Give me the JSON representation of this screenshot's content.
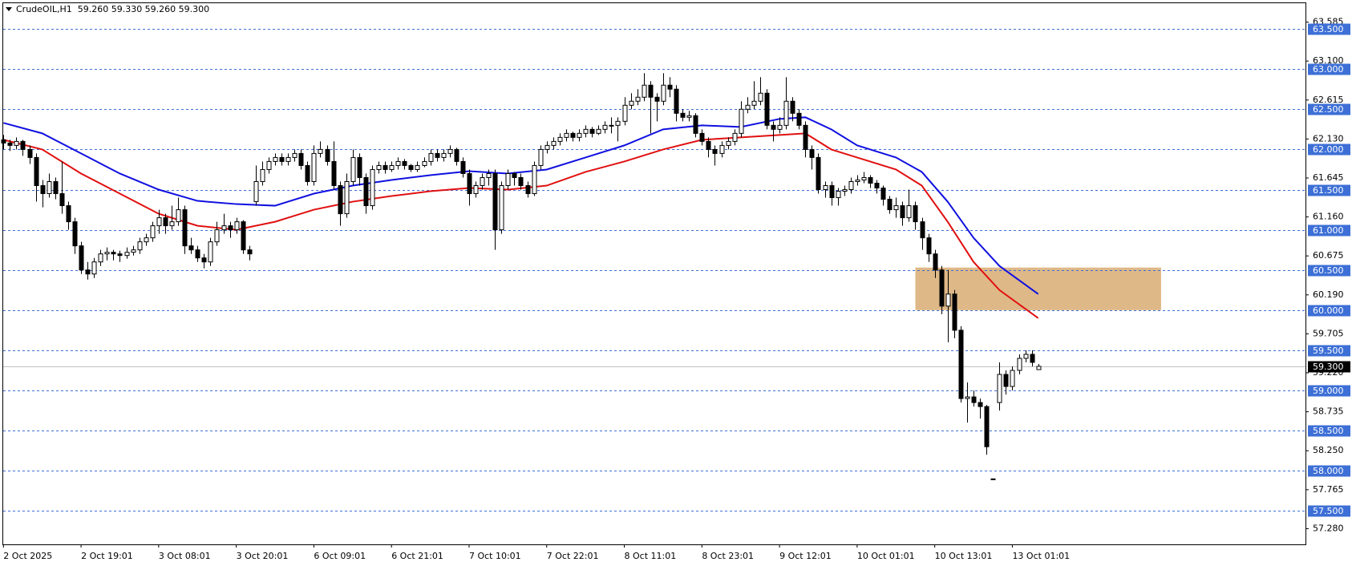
{
  "chart_data": {
    "type": "candlestick",
    "title": "CrudeOIL,H1  59.260 59.330 59.260 59.300",
    "ylim": [
      57.085,
      63.82
    ],
    "yticks": [
      63.585,
      {
        "value": 63.1,
        "label": "63.100"
      },
      62.615,
      {
        "value": 62.13,
        "label": "62.130"
      },
      61.645,
      {
        "value": 61.16,
        "label": "61.160"
      },
      60.675,
      {
        "value": 60.19,
        "label": "60.190"
      },
      59.705,
      {
        "value": 59.22,
        "label": "59.220"
      },
      58.735,
      {
        "value": 58.25,
        "label": "58.250"
      },
      57.765,
      {
        "value": 57.28,
        "label": "57.280"
      }
    ],
    "levels": [
      {
        "value": 63.5,
        "label": "63.500"
      },
      {
        "value": 63,
        "label": "63.000"
      },
      {
        "value": 62.5,
        "label": "62.500"
      },
      {
        "value": 62,
        "label": "62.000"
      },
      {
        "value": 61.5,
        "label": "61.500"
      },
      {
        "value": 61,
        "label": "61.000"
      },
      {
        "value": 60.5,
        "label": "60.500"
      },
      {
        "value": 60,
        "label": "60.000"
      },
      {
        "value": 59.5,
        "label": "59.500"
      },
      {
        "value": 59,
        "label": "59.000"
      },
      {
        "value": 58.5,
        "label": "58.500"
      },
      {
        "value": 58,
        "label": "58.000"
      },
      {
        "value": 57.5,
        "label": "57.500"
      }
    ],
    "level_color": "#3d6fd6",
    "last_price": {
      "value": 59.3,
      "label": "59.300"
    },
    "zone": {
      "from": 141,
      "to": 179,
      "low": 60.0,
      "high": 60.53,
      "color": "#deb887"
    },
    "categories": [
      "2 Oct 2025",
      null,
      null,
      null,
      null,
      null,
      null,
      null,
      null,
      null,
      null,
      null,
      "2 Oct 19:01",
      null,
      null,
      null,
      null,
      null,
      null,
      null,
      null,
      null,
      null,
      null,
      "3 Oct 08:01",
      null,
      null,
      null,
      null,
      null,
      null,
      null,
      null,
      null,
      null,
      null,
      "3 Oct 20:01",
      null,
      null,
      null,
      null,
      null,
      null,
      null,
      null,
      null,
      null,
      null,
      "6 Oct 09:01",
      null,
      null,
      null,
      null,
      null,
      null,
      null,
      null,
      null,
      null,
      null,
      "6 Oct 21:01",
      null,
      null,
      null,
      null,
      null,
      null,
      null,
      null,
      null,
      null,
      null,
      "7 Oct 10:01",
      null,
      null,
      null,
      null,
      null,
      null,
      null,
      null,
      null,
      null,
      null,
      "7 Oct 22:01",
      null,
      null,
      null,
      null,
      null,
      null,
      null,
      null,
      null,
      null,
      null,
      "8 Oct 11:01",
      null,
      null,
      null,
      null,
      null,
      null,
      null,
      null,
      null,
      null,
      null,
      "8 Oct 23:01",
      null,
      null,
      null,
      null,
      null,
      null,
      null,
      null,
      null,
      null,
      null,
      "9 Oct 12:01",
      null,
      null,
      null,
      null,
      null,
      null,
      null,
      null,
      null,
      null,
      null,
      "10 Oct 01:01",
      null,
      null,
      null,
      null,
      null,
      null,
      null,
      null,
      null,
      null,
      null,
      "10 Oct 13:01",
      null,
      null,
      null,
      null,
      null,
      null,
      null,
      null,
      null,
      null,
      null,
      "13 Oct 01:01",
      null,
      null,
      null,
      null
    ],
    "candles": [
      [
        62.12,
        62.18,
        62.0,
        62.08
      ],
      [
        62.08,
        62.12,
        61.98,
        62.05
      ],
      [
        62.05,
        62.15,
        62.0,
        62.1
      ],
      [
        62.1,
        62.12,
        61.92,
        62.0
      ],
      [
        62.0,
        62.05,
        61.82,
        61.9
      ],
      [
        61.9,
        61.95,
        61.35,
        61.55
      ],
      [
        61.55,
        61.62,
        61.28,
        61.45
      ],
      [
        61.45,
        61.7,
        61.4,
        61.6
      ],
      [
        61.6,
        61.65,
        61.38,
        61.45
      ],
      [
        61.45,
        61.85,
        61.2,
        61.3
      ],
      [
        61.3,
        61.35,
        61.0,
        61.1
      ],
      [
        61.1,
        61.15,
        60.7,
        60.8
      ],
      [
        60.8,
        60.85,
        60.45,
        60.5
      ],
      [
        60.5,
        60.6,
        60.38,
        60.45
      ],
      [
        60.45,
        60.65,
        60.4,
        60.6
      ],
      [
        60.6,
        60.75,
        60.55,
        60.7
      ],
      [
        60.7,
        60.78,
        60.62,
        60.72
      ],
      [
        60.72,
        60.75,
        60.62,
        60.7
      ],
      [
        60.7,
        60.74,
        60.6,
        60.68
      ],
      [
        60.68,
        60.78,
        60.64,
        60.72
      ],
      [
        60.72,
        60.8,
        60.68,
        60.75
      ],
      [
        60.75,
        60.9,
        60.7,
        60.85
      ],
      [
        60.85,
        60.95,
        60.8,
        60.9
      ],
      [
        60.9,
        61.1,
        60.85,
        61.05
      ],
      [
        61.05,
        61.25,
        60.95,
        61.15
      ],
      [
        61.15,
        61.2,
        60.95,
        61.05
      ],
      [
        61.05,
        61.3,
        61.0,
        61.1
      ],
      [
        61.1,
        61.4,
        61.05,
        61.25
      ],
      [
        61.25,
        61.3,
        60.7,
        60.8
      ],
      [
        60.8,
        60.9,
        60.7,
        60.75
      ],
      [
        60.75,
        60.8,
        60.6,
        60.65
      ],
      [
        60.65,
        60.7,
        60.52,
        60.6
      ],
      [
        60.6,
        60.9,
        60.55,
        60.85
      ],
      [
        60.85,
        61.1,
        60.8,
        61.0
      ],
      [
        61.0,
        61.2,
        60.95,
        61.05
      ],
      [
        61.05,
        61.1,
        60.9,
        61.0
      ],
      [
        61.0,
        61.15,
        60.95,
        61.1
      ],
      [
        61.1,
        61.12,
        60.7,
        60.75
      ],
      [
        60.75,
        60.8,
        60.62,
        60.7
      ],
      [
        61.35,
        61.8,
        61.3,
        61.6
      ],
      [
        61.6,
        61.85,
        61.55,
        61.75
      ],
      [
        61.75,
        61.9,
        61.7,
        61.85
      ],
      [
        61.85,
        61.95,
        61.8,
        61.9
      ],
      [
        61.9,
        61.95,
        61.8,
        61.85
      ],
      [
        61.85,
        61.95,
        61.8,
        61.9
      ],
      [
        61.9,
        62.0,
        61.85,
        61.95
      ],
      [
        61.95,
        62.0,
        61.75,
        61.8
      ],
      [
        61.8,
        61.85,
        61.55,
        61.6
      ],
      [
        61.6,
        62.05,
        61.55,
        61.95
      ],
      [
        61.95,
        62.1,
        61.9,
        62.0
      ],
      [
        62.0,
        62.05,
        61.8,
        61.85
      ],
      [
        61.85,
        62.1,
        61.5,
        61.55
      ],
      [
        61.55,
        61.6,
        61.05,
        61.2
      ],
      [
        61.2,
        61.7,
        61.15,
        61.6
      ],
      [
        61.6,
        62.0,
        61.55,
        61.9
      ],
      [
        61.9,
        61.95,
        61.55,
        61.65
      ],
      [
        61.65,
        61.7,
        61.2,
        61.3
      ],
      [
        61.3,
        61.8,
        61.25,
        61.75
      ],
      [
        61.75,
        61.85,
        61.7,
        61.8
      ],
      [
        61.8,
        61.85,
        61.7,
        61.75
      ],
      [
        61.75,
        61.85,
        61.72,
        61.8
      ],
      [
        61.8,
        61.9,
        61.75,
        61.85
      ],
      [
        61.85,
        61.88,
        61.75,
        61.8
      ],
      [
        61.8,
        61.82,
        61.72,
        61.75
      ],
      [
        61.75,
        61.85,
        61.72,
        61.8
      ],
      [
        61.8,
        61.9,
        61.78,
        61.85
      ],
      [
        61.85,
        62.0,
        61.8,
        61.95
      ],
      [
        61.95,
        62.0,
        61.85,
        61.9
      ],
      [
        61.9,
        62.0,
        61.85,
        61.95
      ],
      [
        61.95,
        62.05,
        61.9,
        62.0
      ],
      [
        62.0,
        62.02,
        61.8,
        61.85
      ],
      [
        61.85,
        61.9,
        61.65,
        61.7
      ],
      [
        61.7,
        61.75,
        61.3,
        61.45
      ],
      [
        61.45,
        61.6,
        61.4,
        61.55
      ],
      [
        61.55,
        61.7,
        61.5,
        61.65
      ],
      [
        61.65,
        61.75,
        61.55,
        61.7
      ],
      [
        61.7,
        61.75,
        60.75,
        61.0
      ],
      [
        61.0,
        61.6,
        60.95,
        61.55
      ],
      [
        61.55,
        61.75,
        61.5,
        61.7
      ],
      [
        61.7,
        61.72,
        61.55,
        61.65
      ],
      [
        61.65,
        61.7,
        61.5,
        61.55
      ],
      [
        61.55,
        61.6,
        61.4,
        61.45
      ],
      [
        61.45,
        61.85,
        61.42,
        61.8
      ],
      [
        61.8,
        62.05,
        61.75,
        62.0
      ],
      [
        62.0,
        62.1,
        61.95,
        62.05
      ],
      [
        62.05,
        62.15,
        62.0,
        62.1
      ],
      [
        62.1,
        62.2,
        62.05,
        62.15
      ],
      [
        62.15,
        62.25,
        62.1,
        62.2
      ],
      [
        62.2,
        62.22,
        62.1,
        62.15
      ],
      [
        62.15,
        62.25,
        62.1,
        62.2
      ],
      [
        62.2,
        62.3,
        62.15,
        62.25
      ],
      [
        62.25,
        62.28,
        62.15,
        62.2
      ],
      [
        62.2,
        62.3,
        62.18,
        62.25
      ],
      [
        62.25,
        62.35,
        62.2,
        62.3
      ],
      [
        62.3,
        62.4,
        62.2,
        62.3
      ],
      [
        62.3,
        62.4,
        62.1,
        62.35
      ],
      [
        62.35,
        62.65,
        62.3,
        62.55
      ],
      [
        62.55,
        62.7,
        62.5,
        62.6
      ],
      [
        62.6,
        62.75,
        62.55,
        62.65
      ],
      [
        62.65,
        62.95,
        62.6,
        62.8
      ],
      [
        62.8,
        62.85,
        62.2,
        62.65
      ],
      [
        62.65,
        62.7,
        62.35,
        62.6
      ],
      [
        62.6,
        62.95,
        62.55,
        62.8
      ],
      [
        62.8,
        62.9,
        62.65,
        62.75
      ],
      [
        62.75,
        62.8,
        62.35,
        62.45
      ],
      [
        62.45,
        62.5,
        62.35,
        62.4
      ],
      [
        62.4,
        62.48,
        62.35,
        62.42
      ],
      [
        62.42,
        62.45,
        62.15,
        62.2
      ],
      [
        62.2,
        62.25,
        62.05,
        62.1
      ],
      [
        62.1,
        62.15,
        61.9,
        62.0
      ],
      [
        62.0,
        62.05,
        61.8,
        61.95
      ],
      [
        61.95,
        62.1,
        61.9,
        62.05
      ],
      [
        62.05,
        62.15,
        62.0,
        62.1
      ],
      [
        62.1,
        62.25,
        62.05,
        62.2
      ],
      [
        62.2,
        62.6,
        62.15,
        62.5
      ],
      [
        62.5,
        62.65,
        62.45,
        62.55
      ],
      [
        62.55,
        62.85,
        62.5,
        62.6
      ],
      [
        62.6,
        62.9,
        62.55,
        62.7
      ],
      [
        62.7,
        62.75,
        62.25,
        62.3
      ],
      [
        62.3,
        62.35,
        62.1,
        62.25
      ],
      [
        62.25,
        62.4,
        62.2,
        62.3
      ],
      [
        62.3,
        62.9,
        62.25,
        62.6
      ],
      [
        62.6,
        62.65,
        62.35,
        62.45
      ],
      [
        62.45,
        62.5,
        62.25,
        62.3
      ],
      [
        62.3,
        62.35,
        61.9,
        62.0
      ],
      [
        62.0,
        62.05,
        61.75,
        61.9
      ],
      [
        61.9,
        61.95,
        61.45,
        61.5
      ],
      [
        61.5,
        61.6,
        61.4,
        61.55
      ],
      [
        61.55,
        61.6,
        61.3,
        61.4
      ],
      [
        61.4,
        61.52,
        61.3,
        61.48
      ],
      [
        61.48,
        61.55,
        61.42,
        61.5
      ],
      [
        61.5,
        61.65,
        61.45,
        61.6
      ],
      [
        61.6,
        61.68,
        61.55,
        61.62
      ],
      [
        61.62,
        61.72,
        61.58,
        61.65
      ],
      [
        61.65,
        61.68,
        61.52,
        61.58
      ],
      [
        61.58,
        61.62,
        61.45,
        61.52
      ],
      [
        61.52,
        61.55,
        61.3,
        61.38
      ],
      [
        61.38,
        61.42,
        61.2,
        61.25
      ],
      [
        61.25,
        61.4,
        61.15,
        61.3
      ],
      [
        61.3,
        61.35,
        61.05,
        61.15
      ],
      [
        61.15,
        61.5,
        61.1,
        61.3
      ],
      [
        61.3,
        61.35,
        61.0,
        61.1
      ],
      [
        61.1,
        61.15,
        60.75,
        60.9
      ],
      [
        60.9,
        60.95,
        60.6,
        60.7
      ],
      [
        60.7,
        60.75,
        60.4,
        60.5
      ],
      [
        60.5,
        60.55,
        59.95,
        60.05
      ],
      [
        60.05,
        60.5,
        59.6,
        60.2
      ],
      [
        60.2,
        60.25,
        59.65,
        59.75
      ],
      [
        59.75,
        59.8,
        58.85,
        58.9
      ],
      [
        58.9,
        59.1,
        58.6,
        58.92
      ],
      [
        58.92,
        59.0,
        58.8,
        58.85
      ],
      [
        58.85,
        58.9,
        58.65,
        58.8
      ],
      [
        58.8,
        58.82,
        58.2,
        58.3
      ],
      [
        57.9,
        57.9,
        57.9,
        57.9
      ],
      [
        58.85,
        59.35,
        58.75,
        59.2
      ],
      [
        59.2,
        59.25,
        58.95,
        59.05
      ],
      [
        59.05,
        59.3,
        59.0,
        59.25
      ],
      [
        59.25,
        59.45,
        59.2,
        59.4
      ],
      [
        59.4,
        59.5,
        59.35,
        59.45
      ],
      [
        59.45,
        59.5,
        59.3,
        59.35
      ],
      [
        59.26,
        59.33,
        59.26,
        59.3
      ]
    ],
    "up_color": "#ffffff",
    "down_color": "#000000",
    "series": [
      {
        "name": null,
        "color": "#1010e0",
        "x": [
          0,
          6,
          12,
          18,
          24,
          30,
          36,
          42,
          48,
          54,
          60,
          66,
          72,
          78,
          84,
          90,
          96,
          102,
          108,
          114,
          120,
          124,
          128,
          132,
          138,
          142,
          146,
          150,
          154,
          160
        ],
        "values": [
          62.33,
          62.2,
          61.95,
          61.7,
          61.5,
          61.36,
          61.32,
          61.3,
          61.45,
          61.55,
          61.62,
          61.68,
          61.73,
          61.7,
          61.75,
          61.9,
          62.05,
          62.25,
          62.3,
          62.28,
          62.38,
          62.4,
          62.25,
          62.05,
          61.9,
          61.72,
          61.35,
          60.9,
          60.55,
          60.2
        ]
      },
      {
        "name": null,
        "color": "#e01010",
        "x": [
          0,
          6,
          12,
          18,
          24,
          30,
          36,
          42,
          48,
          54,
          60,
          66,
          72,
          78,
          84,
          90,
          96,
          102,
          108,
          114,
          120,
          124,
          128,
          132,
          138,
          142,
          146,
          150,
          154,
          160
        ],
        "values": [
          62.12,
          62.0,
          61.7,
          61.45,
          61.2,
          61.05,
          61.0,
          61.1,
          61.25,
          61.35,
          61.42,
          61.48,
          61.52,
          61.5,
          61.55,
          61.72,
          61.85,
          62.0,
          62.12,
          62.15,
          62.18,
          62.2,
          62.0,
          61.9,
          61.75,
          61.55,
          61.1,
          60.6,
          60.25,
          59.9
        ]
      }
    ]
  }
}
